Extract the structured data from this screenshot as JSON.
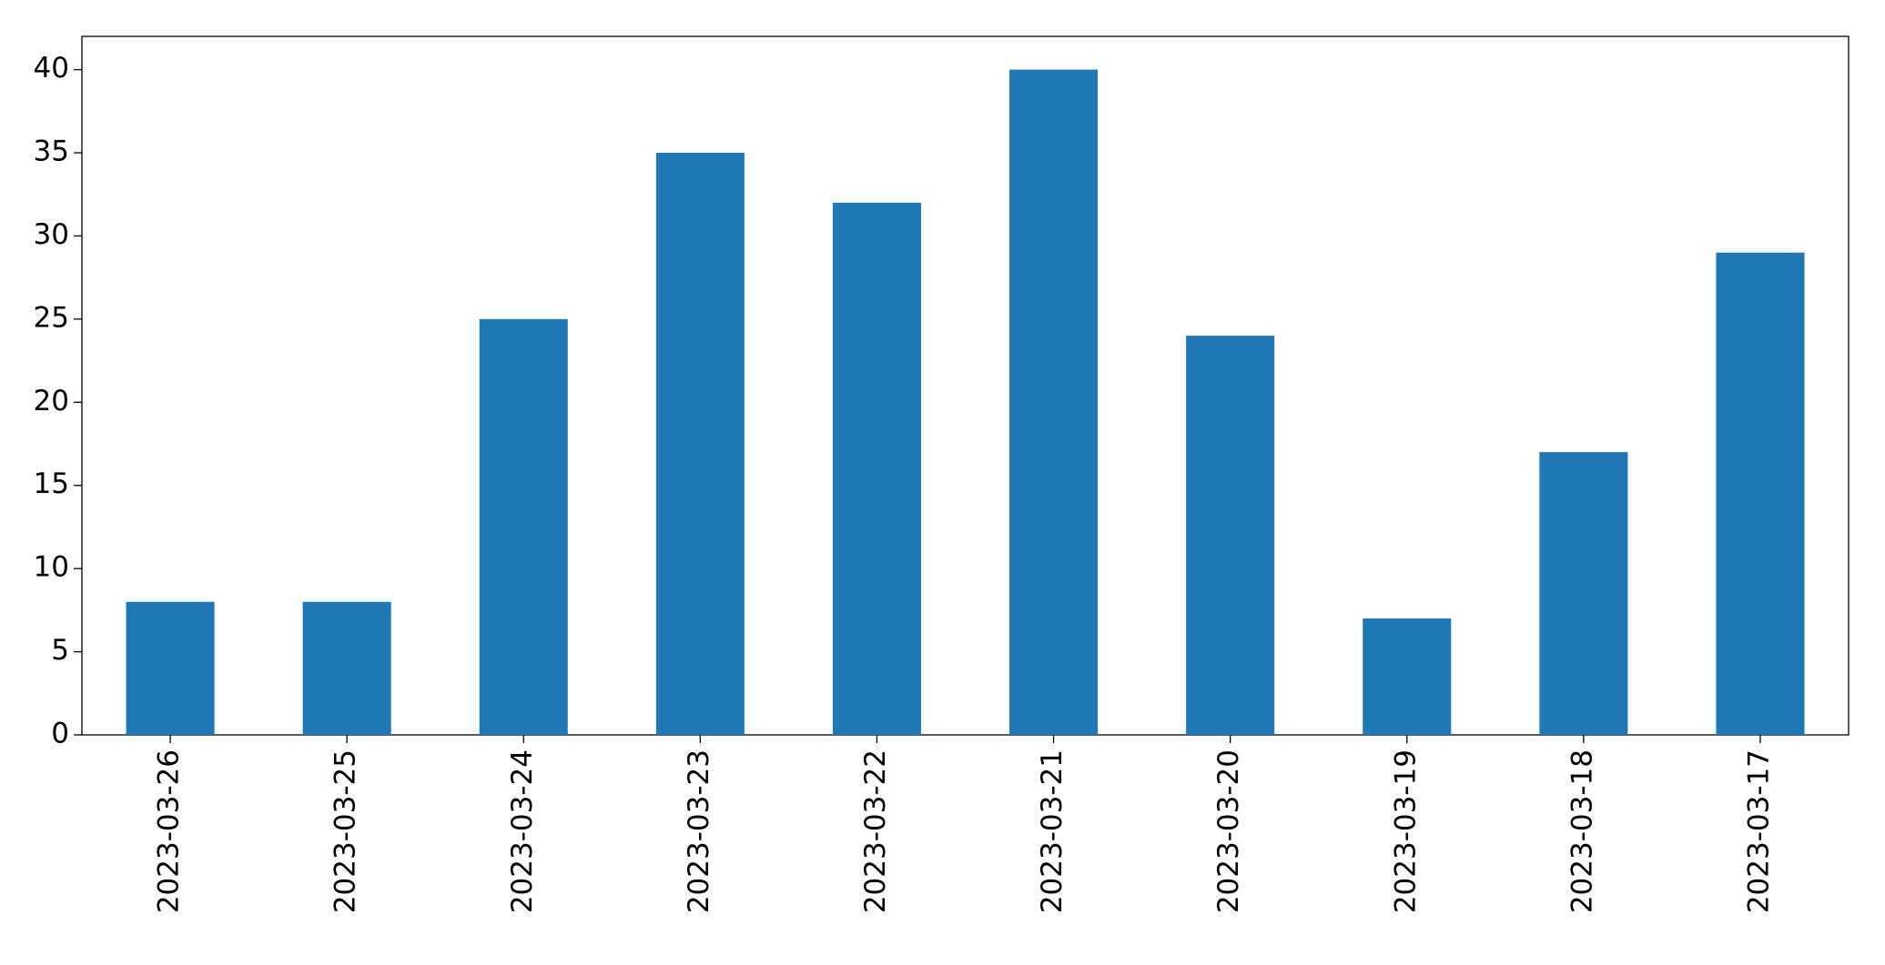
{
  "chart_data": {
    "type": "bar",
    "categories": [
      "2023-03-26",
      "2023-03-25",
      "2023-03-24",
      "2023-03-23",
      "2023-03-22",
      "2023-03-21",
      "2023-03-20",
      "2023-03-19",
      "2023-03-18",
      "2023-03-17"
    ],
    "values": [
      8,
      8,
      25,
      35,
      32,
      40,
      24,
      7,
      17,
      29
    ],
    "color": "#1f77b4",
    "ylim": [
      0,
      42
    ],
    "yticks": [
      0,
      5,
      10,
      15,
      20,
      25,
      30,
      35,
      40
    ],
    "grid": false
  }
}
